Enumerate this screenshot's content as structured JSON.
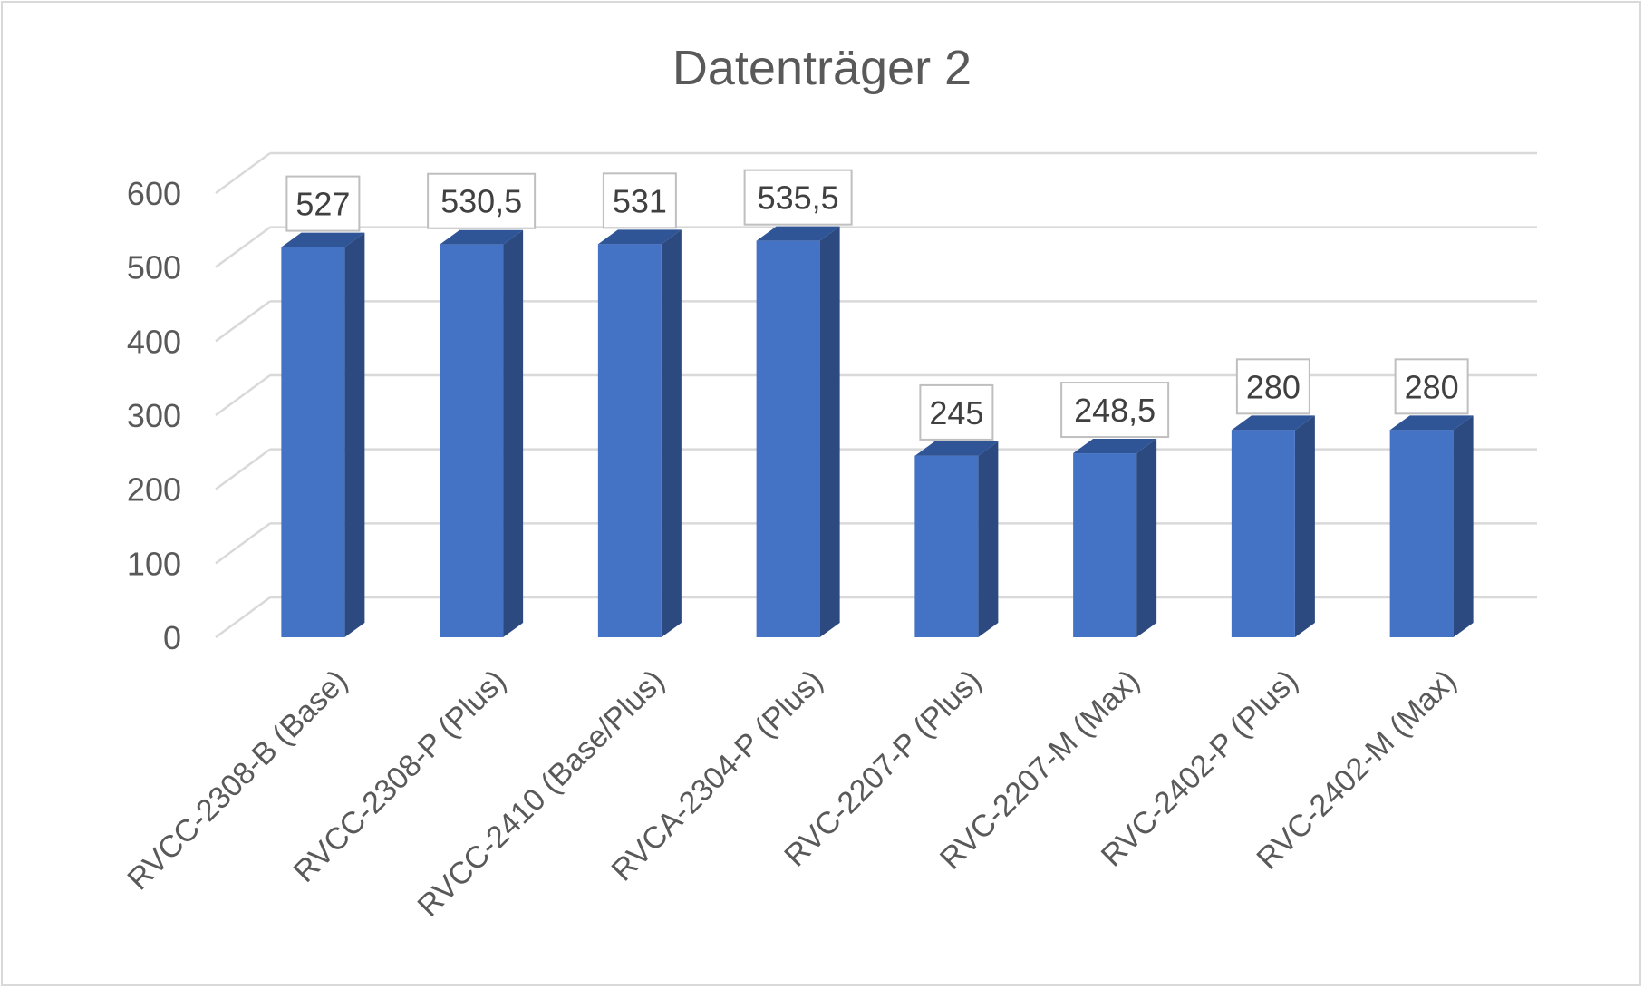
{
  "chart_data": {
    "type": "bar",
    "title": "Datenträger 2",
    "categories": [
      "RVCC-2308-B (Base)",
      "RVCC-2308-P (Plus)",
      "RVCC-2410 (Base/Plus)",
      "RVCA-2304-P (Plus)",
      "RVC-2207-P (Plus)",
      "RVC-2207-M (Max)",
      "RVC-2402-P (Plus)",
      "RVC-2402-M (Max)"
    ],
    "values": [
      527,
      530.5,
      531,
      535.5,
      245,
      248.5,
      280,
      280
    ],
    "data_labels": [
      "527",
      "530,5",
      "531",
      "535,5",
      "245",
      "248,5",
      "280",
      "280"
    ],
    "y_ticks": [
      "0",
      "100",
      "200",
      "300",
      "400",
      "500",
      "600"
    ],
    "ylim": [
      0,
      600
    ],
    "xlabel": "",
    "ylabel": "",
    "grid": true,
    "legend": "none",
    "style": "3d-column",
    "colors": {
      "bar_front": "#4472c4",
      "bar_side": "#2c4a80",
      "bar_top": "#2f5597",
      "grid": "#d9d9d9"
    }
  }
}
